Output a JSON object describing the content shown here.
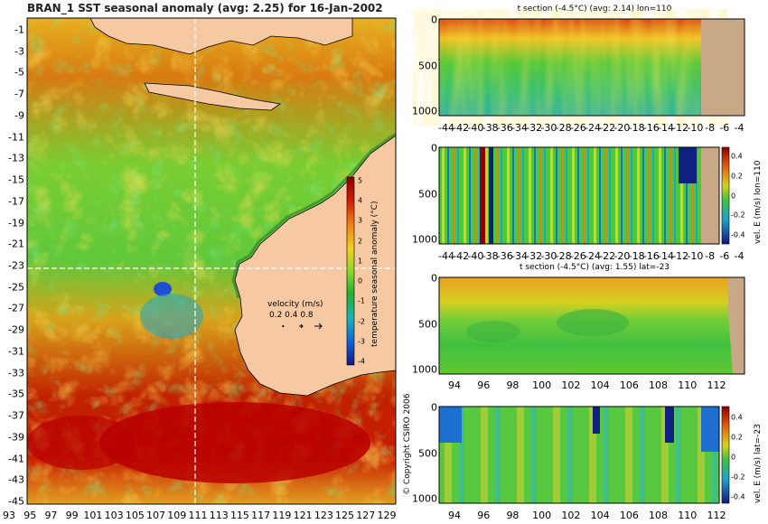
{
  "title": "BRAN_1 SST seasonal anomaly (avg: 2.25) for 16-Jan-2002",
  "copyright": "© Copyright CSIRO 2006",
  "colors": {
    "land": "#f6c9a3",
    "land_section": "#c8a886",
    "ocean_warm": "#c30000",
    "ocean_mid": "#f0b21e",
    "ocean_cool": "#5acd3c",
    "ocean_cold": "#1e8fd8"
  },
  "chart_data": [
    {
      "type": "heatmap",
      "name": "map",
      "title": "BRAN_1 SST seasonal anomaly (avg: 2.25) for 16-Jan-2002",
      "x_ticks": [
        "93",
        "95",
        "97",
        "99",
        "101",
        "103",
        "105",
        "107",
        "109",
        "111",
        "113",
        "115",
        "117",
        "119",
        "121",
        "123",
        "125",
        "127",
        "129"
      ],
      "y_ticks": [
        "-1",
        "-3",
        "-5",
        "-7",
        "-9",
        "-11",
        "-13",
        "-15",
        "-17",
        "-19",
        "-21",
        "-23",
        "-25",
        "-27",
        "-29",
        "-31",
        "-33",
        "-35",
        "-37",
        "-39",
        "-41",
        "-43",
        "-45"
      ],
      "xlim": [
        92.5,
        130
      ],
      "ylim": [
        -45.5,
        0.5
      ],
      "section_lon": 110,
      "section_lat": -23,
      "colorbar": {
        "label": "temperature seasonal anomaly (°C)",
        "ticks": [
          "5",
          "4",
          "3",
          "2",
          "1",
          "0",
          "-1",
          "-2",
          "-3",
          "-4"
        ],
        "range": [
          -4,
          5
        ]
      },
      "velocity_legend": {
        "label": "velocity (m/s)",
        "values": "0.2 0.4 0.8"
      }
    },
    {
      "type": "heatmap",
      "name": "t-section-lon110",
      "title": "t section (-4.5°C) (avg: 2.14) lon=110",
      "x_ticks": [
        "-44",
        "-42",
        "-40",
        "-38",
        "-36",
        "-34",
        "-32",
        "-30",
        "-28",
        "-26",
        "-24",
        "-22",
        "-20",
        "-18",
        "-16",
        "-14",
        "-12",
        "-10",
        "-8",
        "-6",
        "-4"
      ],
      "y_ticks": [
        "0",
        "500",
        "1000"
      ]
    },
    {
      "type": "heatmap",
      "name": "vel-section-lon110",
      "title": "",
      "x_ticks": [
        "-44",
        "-42",
        "-40",
        "-38",
        "-36",
        "-34",
        "-32",
        "-30",
        "-28",
        "-26",
        "-24",
        "-22",
        "-20",
        "-18",
        "-16",
        "-14",
        "-12",
        "-10",
        "-8",
        "-6",
        "-4"
      ],
      "y_ticks": [
        "0",
        "500",
        "1000"
      ],
      "colorbar": {
        "label": "vel. E (m/s) lon=110",
        "ticks": [
          "0.4",
          "0.2",
          "0",
          "-0.2",
          "-0.4"
        ]
      }
    },
    {
      "type": "heatmap",
      "name": "t-section-lat23",
      "title": "t section (-4.5°C) (avg: 1.55) lat=-23",
      "x_ticks": [
        "94",
        "96",
        "98",
        "100",
        "102",
        "104",
        "106",
        "108",
        "110",
        "112"
      ],
      "y_ticks": [
        "0",
        "500",
        "1000"
      ]
    },
    {
      "type": "heatmap",
      "name": "vel-section-lat23",
      "title": "",
      "x_ticks": [
        "94",
        "96",
        "98",
        "100",
        "102",
        "104",
        "106",
        "108",
        "110",
        "112"
      ],
      "y_ticks": [
        "0",
        "500",
        "1000"
      ],
      "colorbar": {
        "label": "vel. E (m/s) lat=-23",
        "ticks": [
          "0.4",
          "0.2",
          "0",
          "-0.2",
          "-0.4"
        ]
      }
    }
  ]
}
